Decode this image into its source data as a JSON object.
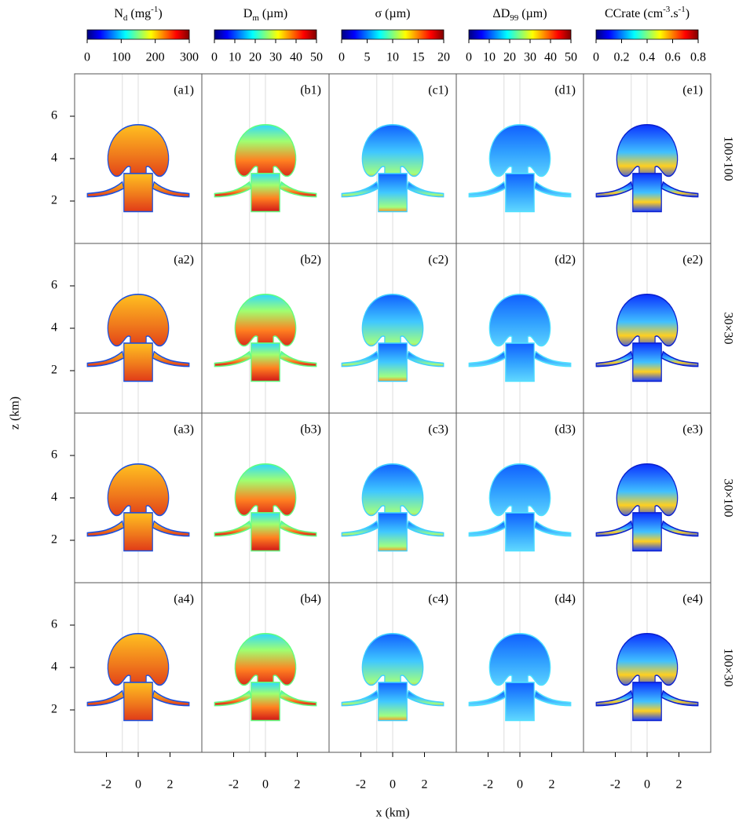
{
  "chart_data": {
    "type": "heatmap",
    "x_label": "x (km)",
    "y_label": "z (km)",
    "xlim": [
      -4,
      4
    ],
    "xticks": [
      -2,
      0,
      2
    ],
    "ylim": [
      0,
      8
    ],
    "yticks": [
      2,
      4,
      6
    ],
    "vlines": [
      -1,
      0
    ],
    "colormap": [
      "#00007f",
      "#0000ff",
      "#007fff",
      "#00ffff",
      "#7fff7f",
      "#ffff00",
      "#ff7f00",
      "#ff0000",
      "#7f0000"
    ],
    "columns": [
      {
        "title": [
          {
            "text": "N"
          },
          {
            "text": "d",
            "style": "sub"
          },
          {
            "text": " (mg"
          },
          {
            "text": "-1",
            "style": "sup"
          },
          {
            "text": ")"
          }
        ],
        "clim": [
          0,
          300
        ],
        "cticks": [
          0,
          100,
          200,
          300
        ]
      },
      {
        "title": [
          {
            "text": "D"
          },
          {
            "text": "m",
            "style": "sub"
          },
          {
            "text": " (µm)"
          }
        ],
        "clim": [
          0,
          50
        ],
        "cticks": [
          0,
          10,
          20,
          30,
          40,
          50
        ]
      },
      {
        "title": [
          {
            "text": "σ (µm)"
          }
        ],
        "clim": [
          0,
          20
        ],
        "cticks": [
          0,
          5,
          10,
          15,
          20
        ]
      },
      {
        "title": [
          {
            "text": "ΔD"
          },
          {
            "text": "99",
            "style": "sub"
          },
          {
            "text": " (µm)"
          }
        ],
        "clim": [
          0,
          50
        ],
        "cticks": [
          0,
          10,
          20,
          30,
          40,
          50
        ]
      },
      {
        "title": [
          {
            "text": "CCrate (cm"
          },
          {
            "text": "-3",
            "style": "sup"
          },
          {
            "text": ".s"
          },
          {
            "text": "-1",
            "style": "sup"
          },
          {
            "text": ")"
          }
        ],
        "clim": [
          0,
          0.8
        ],
        "cticks": [
          0,
          0.2,
          0.4,
          0.6,
          0.8
        ]
      }
    ],
    "rows": [
      "100×100",
      "30×30",
      "30×100",
      "100×30"
    ],
    "panel_labels": [
      [
        "(a1)",
        "(b1)",
        "(c1)",
        "(d1)",
        "(e1)"
      ],
      [
        "(a2)",
        "(b2)",
        "(c2)",
        "(d2)",
        "(e2)"
      ],
      [
        "(a3)",
        "(b3)",
        "(c3)",
        "(d3)",
        "(e3)"
      ],
      [
        "(a4)",
        "(b4)",
        "(c4)",
        "(d4)",
        "(e4)"
      ]
    ]
  }
}
